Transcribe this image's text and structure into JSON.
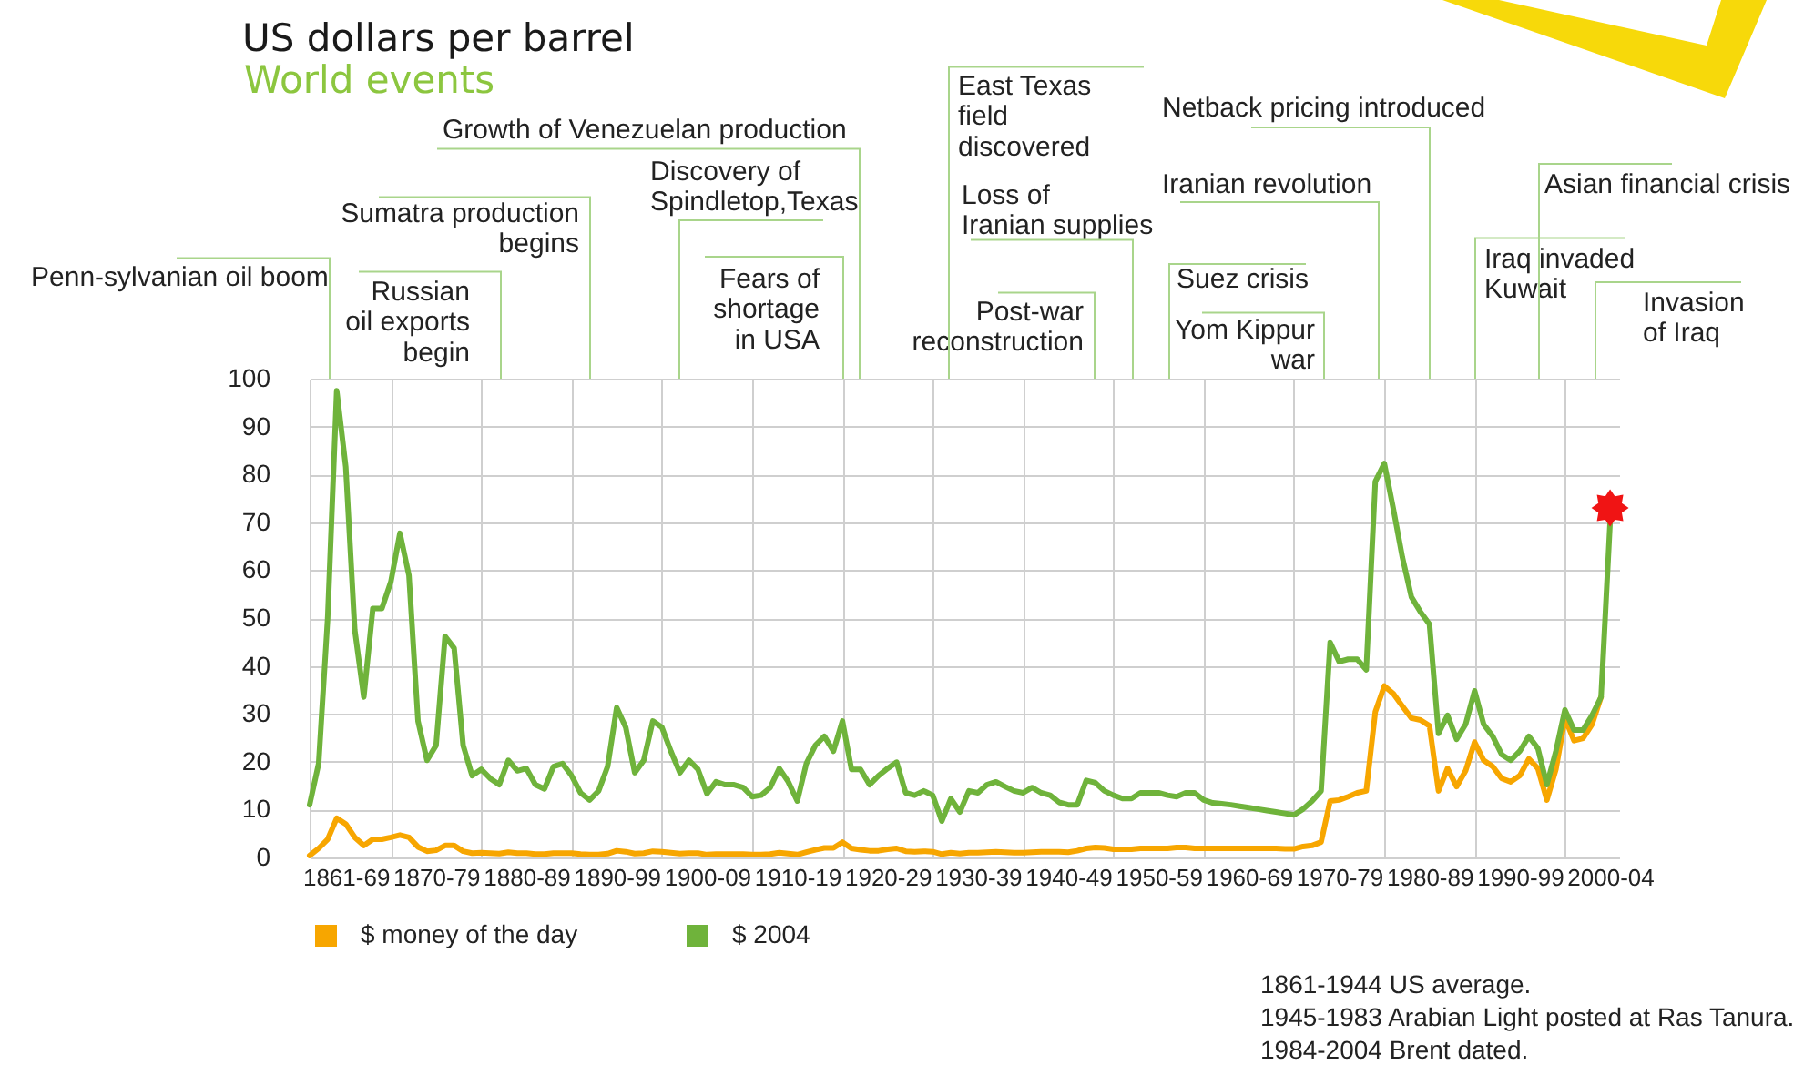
{
  "chart_data": {
    "type": "line",
    "title": "US dollars per barrel",
    "subtitle": "World events",
    "categories": [
      null,
      null,
      null,
      null,
      "1861-69",
      null,
      null,
      null,
      null,
      null,
      null,
      null,
      null,
      null,
      "1870-79",
      null,
      null,
      null,
      null,
      null,
      null,
      null,
      null,
      null,
      "1880-89",
      null,
      null,
      null,
      null,
      null,
      null,
      null,
      null,
      null,
      "1890-99",
      null,
      null,
      null,
      null,
      null,
      null,
      null,
      null,
      null,
      "1900-09",
      null,
      null,
      null,
      null,
      null,
      null,
      null,
      null,
      null,
      "1910-19",
      null,
      null,
      null,
      null,
      null,
      null,
      null,
      null,
      null,
      "1920-29",
      null,
      null,
      null,
      null,
      null,
      null,
      null,
      null,
      null,
      "1930-39",
      null,
      null,
      null,
      null,
      null,
      null,
      null,
      null,
      null,
      "1940-49",
      null,
      null,
      null,
      null,
      null,
      null,
      null,
      null,
      null,
      "1950-59",
      null,
      null,
      null,
      null,
      null,
      null,
      null,
      null,
      null,
      "1960-69",
      null,
      null,
      null,
      null,
      null,
      null,
      null,
      null,
      null,
      "1970-79",
      null,
      null,
      null,
      null,
      null,
      null,
      null,
      null,
      null,
      "1980-89",
      null,
      null,
      null,
      null,
      null,
      null,
      null,
      null,
      null,
      "1990-99",
      null,
      null,
      null,
      null,
      null,
      null,
      null,
      null,
      null,
      "2000-04"
    ],
    "series": [
      {
        "name": "$ money of the day",
        "color": "#f7a600",
        "values": [
          0.4,
          1.9,
          3.8,
          8.2,
          7,
          4.2,
          2.5,
          3.8,
          3.8,
          4.2,
          4.7,
          4.2,
          2.2,
          1.3,
          1.5,
          2.5,
          2.5,
          1.3,
          0.9,
          1,
          0.9,
          0.8,
          1.1,
          0.9,
          0.9,
          0.7,
          0.7,
          0.9,
          0.9,
          0.9,
          0.7,
          0.6,
          0.6,
          0.8,
          1.4,
          1.2,
          0.8,
          0.9,
          1.3,
          1.2,
          1,
          0.8,
          0.9,
          0.9,
          0.6,
          0.7,
          0.7,
          0.7,
          0.7,
          0.6,
          0.6,
          0.7,
          1,
          0.8,
          0.6,
          1.1,
          1.6,
          2,
          2,
          3.2,
          1.9,
          1.6,
          1.4,
          1.4,
          1.7,
          1.9,
          1.3,
          1.2,
          1.3,
          1.2,
          0.7,
          1,
          0.8,
          1,
          1,
          1.1,
          1.2,
          1.1,
          1,
          1,
          1.1,
          1.2,
          1.2,
          1.2,
          1.1,
          1.4,
          1.9,
          2.1,
          2,
          1.7,
          1.7,
          1.7,
          1.9,
          1.9,
          1.9,
          1.9,
          2.1,
          2.1,
          1.9,
          1.9,
          1.9,
          1.9,
          1.9,
          1.9,
          1.9,
          1.9,
          1.9,
          1.9,
          1.8,
          1.8,
          2.3,
          2.5,
          3.2,
          11.8,
          12,
          12.7,
          13.5,
          13.9,
          30.4,
          35.8,
          34.2,
          31.6,
          29.1,
          28.7,
          27.5,
          13.9,
          18.6,
          14.8,
          18.1,
          24.1,
          20.3,
          19,
          16.5,
          15.8,
          17.1,
          20.6,
          18.6,
          12,
          18.4,
          29.1,
          24.4,
          24.9,
          27.8,
          33.5,
          null
        ]
      },
      {
        "name": "$ 2004",
        "color": "#6fb33b",
        "values": [
          11,
          19.6,
          50,
          97.5,
          81.6,
          47.5,
          33.5,
          52,
          52,
          57.6,
          67.7,
          58.9,
          28.5,
          20.3,
          23.4,
          46.2,
          43.7,
          23.4,
          17.1,
          18.4,
          16.5,
          15.2,
          20.3,
          18.1,
          18.6,
          15.2,
          14.3,
          19,
          19.6,
          17.1,
          13.5,
          12,
          13.9,
          19,
          31.3,
          27.2,
          17.7,
          20.3,
          28.5,
          27.2,
          22.2,
          17.7,
          20.3,
          18.4,
          13.3,
          15.8,
          15.2,
          15.2,
          14.6,
          12.7,
          13,
          14.6,
          18.6,
          15.8,
          11.8,
          19.6,
          23.4,
          25.3,
          22.2,
          28.5,
          18.4,
          18.4,
          15.2,
          17.1,
          18.6,
          19.9,
          13.5,
          13,
          13.9,
          13,
          7.6,
          12.3,
          9.5,
          13.9,
          13.5,
          15.2,
          15.8,
          14.8,
          13.9,
          13.5,
          14.6,
          13.5,
          13,
          11.5,
          11,
          11,
          16.1,
          15.6,
          13.9,
          13,
          12.3,
          12.3,
          13.5,
          13.5,
          13.5,
          13,
          12.7,
          13.5,
          13.5,
          12,
          11.4,
          11.2,
          11,
          10.7,
          10.4,
          10.1,
          9.8,
          9.5,
          9.2,
          8.9,
          10.1,
          11.8,
          13.9,
          44.9,
          40.9,
          41.4,
          41.4,
          39.2,
          78.5,
          82.3,
          72.8,
          62.7,
          54.4,
          51.3,
          48.7,
          25.9,
          29.7,
          24.7,
          27.8,
          34.8,
          27.8,
          25.3,
          21.5,
          20.3,
          22.2,
          25.3,
          22.8,
          15.2,
          22.2,
          30.8,
          26.6,
          26.6,
          29.7,
          33.5,
          70
        ]
      },
      {
        "type": "scatter",
        "color": "#f01414",
        "marker": "star",
        "values": [
          null,
          null,
          null,
          null,
          null,
          null,
          null,
          null,
          null,
          null,
          null,
          null,
          null,
          null,
          null,
          null,
          null,
          null,
          null,
          null,
          null,
          null,
          null,
          null,
          null,
          null,
          null,
          null,
          null,
          null,
          null,
          null,
          null,
          null,
          null,
          null,
          null,
          null,
          null,
          null,
          null,
          null,
          null,
          null,
          null,
          null,
          null,
          null,
          null,
          null,
          null,
          null,
          null,
          null,
          null,
          null,
          null,
          null,
          null,
          null,
          null,
          null,
          null,
          null,
          null,
          null,
          null,
          null,
          null,
          null,
          null,
          null,
          null,
          null,
          null,
          null,
          null,
          null,
          null,
          null,
          null,
          null,
          null,
          null,
          null,
          null,
          null,
          null,
          null,
          null,
          null,
          null,
          null,
          null,
          null,
          null,
          null,
          null,
          null,
          null,
          null,
          null,
          null,
          null,
          null,
          null,
          null,
          null,
          null,
          null,
          null,
          null,
          null,
          null,
          null,
          null,
          null,
          null,
          null,
          null,
          null,
          null,
          null,
          null,
          null,
          null,
          null,
          null,
          null,
          null,
          null,
          null,
          null,
          null,
          null,
          null,
          null,
          null,
          null,
          null,
          null,
          null,
          null,
          null,
          73
        ]
      }
    ],
    "ylim": [
      0,
      100
    ],
    "yticks": [
      0,
      10,
      20,
      30,
      40,
      50,
      60,
      70,
      80,
      90,
      100
    ],
    "grid": true,
    "legend": "bottom left",
    "annotations": [
      "Penn-sylvanian oil boom",
      "Russian oil exports begin",
      "Sumatra production begins",
      "Discovery of Spindletop,Texas",
      "Fears of shortage in USA",
      "Growth of Venezuelan production",
      "East Texas field discovered",
      "Post-war reconstruction",
      "Loss of Iranian supplies",
      "Suez crisis",
      "Yom Kippur war",
      "Iranian revolution",
      "Netback pricing introduced",
      "Iraq invaded Kuwait",
      "Asian financial crisis",
      "Invasion of Iraq",
      "1861-1944 US average.",
      "1945-1983 Arabian Light posted at Ras Tanura.",
      "1984-2004 Brent dated."
    ]
  }
}
